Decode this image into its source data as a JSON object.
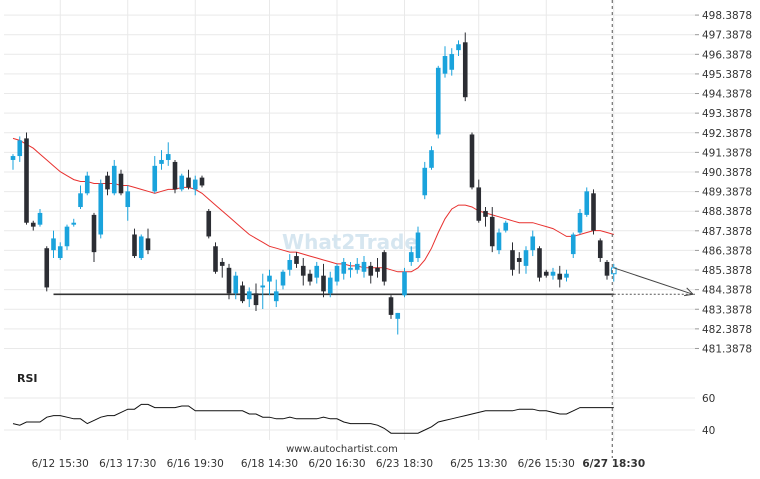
{
  "chart_data": {
    "type": "candlestick",
    "watermark": "What2Trade",
    "footer": "www.autochartist.com",
    "price_axis": {
      "min": 480.8,
      "max": 498.8,
      "ticks": [
        481.3878,
        482.3878,
        483.3878,
        484.3878,
        485.3878,
        486.3878,
        487.3878,
        488.3878,
        489.3878,
        490.3878,
        491.3878,
        492.3878,
        493.3878,
        494.3878,
        495.3878,
        496.3878,
        497.3878,
        498.3878
      ],
      "tick_labels": [
        "481.3878",
        "482.3878",
        "483.3878",
        "484.3878",
        "485.3878",
        "486.3878",
        "487.3878",
        "488.3878",
        "489.3878",
        "490.3878",
        "491.3878",
        "492.3878",
        "493.3878",
        "494.3878",
        "495.3878",
        "496.3878",
        "497.3878",
        "498.3878"
      ]
    },
    "x_labels": [
      {
        "label": "6/12 15:30",
        "index": 7
      },
      {
        "label": "6/13 17:30",
        "index": 17
      },
      {
        "label": "6/16 19:30",
        "index": 27
      },
      {
        "label": "6/18 14:30",
        "index": 38
      },
      {
        "label": "6/20 16:30",
        "index": 48
      },
      {
        "label": "6/23 18:30",
        "index": 58
      },
      {
        "label": "6/25 13:30",
        "index": 69
      },
      {
        "label": "6/26 15:30",
        "index": 79
      },
      {
        "label": "6/27 18:30",
        "index": 89,
        "bold": true
      }
    ],
    "candles": [
      [
        491.0,
        491.3,
        490.5,
        491.2
      ],
      [
        491.2,
        492.2,
        490.9,
        492.0
      ],
      [
        492.1,
        492.4,
        487.7,
        487.8
      ],
      [
        487.8,
        487.9,
        487.4,
        487.6
      ],
      [
        487.7,
        488.5,
        487.6,
        488.3
      ],
      [
        486.5,
        486.6,
        484.3,
        484.5
      ],
      [
        486.4,
        487.4,
        486.0,
        487.0
      ],
      [
        486.0,
        486.8,
        485.9,
        486.6
      ],
      [
        486.6,
        487.7,
        486.4,
        487.6
      ],
      [
        487.7,
        488.0,
        487.6,
        487.8
      ],
      [
        488.6,
        489.7,
        488.5,
        489.3
      ],
      [
        489.3,
        490.4,
        489.2,
        490.2
      ],
      [
        488.2,
        488.3,
        485.8,
        486.3
      ],
      [
        487.2,
        490.0,
        487.0,
        489.8
      ],
      [
        490.2,
        490.4,
        489.2,
        489.5
      ],
      [
        489.3,
        491.0,
        489.2,
        490.7
      ],
      [
        490.3,
        490.5,
        489.2,
        489.3
      ],
      [
        488.6,
        489.7,
        487.9,
        489.4
      ],
      [
        487.2,
        487.5,
        486.0,
        486.1
      ],
      [
        486.0,
        487.2,
        485.9,
        487.1
      ],
      [
        487.0,
        487.5,
        486.2,
        486.4
      ],
      [
        489.4,
        491.2,
        489.3,
        490.7
      ],
      [
        490.8,
        491.5,
        490.5,
        491.0
      ],
      [
        491.0,
        491.9,
        490.7,
        491.3
      ],
      [
        490.9,
        491.0,
        489.3,
        489.5
      ],
      [
        489.5,
        490.3,
        489.4,
        490.2
      ],
      [
        490.1,
        490.5,
        489.5,
        489.6
      ],
      [
        489.5,
        490.2,
        489.2,
        490.0
      ],
      [
        490.1,
        490.2,
        489.6,
        489.7
      ],
      [
        488.4,
        488.5,
        487.0,
        487.1
      ],
      [
        486.6,
        486.8,
        485.2,
        485.3
      ],
      [
        485.8,
        486.0,
        485.0,
        485.6
      ],
      [
        485.5,
        485.7,
        483.9,
        484.2
      ],
      [
        484.2,
        485.3,
        483.9,
        485.1
      ],
      [
        484.6,
        484.8,
        483.7,
        483.8
      ],
      [
        483.9,
        484.5,
        483.5,
        484.3
      ],
      [
        484.2,
        484.7,
        483.3,
        483.6
      ],
      [
        484.5,
        485.2,
        483.4,
        484.6
      ],
      [
        484.8,
        485.4,
        484.1,
        485.1
      ],
      [
        483.8,
        484.9,
        483.5,
        484.3
      ],
      [
        484.6,
        485.4,
        484.4,
        485.3
      ],
      [
        485.4,
        486.2,
        485.1,
        485.9
      ],
      [
        486.1,
        486.3,
        485.5,
        485.7
      ],
      [
        485.6,
        486.0,
        484.6,
        485.1
      ],
      [
        485.2,
        485.4,
        484.6,
        484.8
      ],
      [
        485.0,
        485.8,
        484.7,
        485.6
      ],
      [
        485.1,
        485.7,
        484.0,
        484.3
      ],
      [
        484.2,
        485.3,
        484.0,
        485.0
      ],
      [
        484.8,
        485.7,
        484.6,
        485.6
      ],
      [
        485.2,
        486.0,
        484.9,
        485.8
      ],
      [
        485.4,
        485.8,
        485.0,
        485.5
      ],
      [
        485.4,
        486.0,
        485.2,
        485.7
      ],
      [
        485.3,
        486.1,
        485.0,
        485.8
      ],
      [
        485.6,
        485.8,
        484.7,
        485.1
      ],
      [
        485.5,
        486.0,
        485.0,
        485.3
      ],
      [
        486.3,
        486.4,
        484.6,
        484.8
      ],
      [
        484.0,
        484.1,
        482.9,
        483.1
      ],
      [
        482.9,
        483.2,
        482.1,
        483.2
      ],
      [
        484.1,
        485.5,
        484.0,
        485.3
      ],
      [
        485.8,
        486.6,
        485.6,
        486.3
      ],
      [
        486.0,
        487.6,
        485.8,
        487.3
      ],
      [
        489.2,
        490.9,
        489.0,
        490.6
      ],
      [
        490.6,
        491.7,
        490.5,
        491.5
      ],
      [
        492.3,
        495.8,
        492.1,
        495.7
      ],
      [
        495.4,
        496.8,
        495.2,
        496.3
      ],
      [
        495.6,
        496.7,
        495.3,
        496.4
      ],
      [
        496.6,
        497.1,
        496.3,
        496.9
      ],
      [
        497.0,
        497.5,
        494.0,
        494.2
      ],
      [
        492.3,
        492.4,
        489.5,
        489.6
      ],
      [
        489.6,
        490.0,
        487.8,
        487.9
      ],
      [
        488.4,
        488.6,
        487.6,
        488.1
      ],
      [
        488.1,
        488.6,
        486.3,
        486.6
      ],
      [
        486.4,
        487.5,
        486.2,
        487.3
      ],
      [
        487.4,
        487.9,
        487.3,
        487.8
      ],
      [
        486.4,
        486.8,
        485.1,
        485.4
      ],
      [
        486.0,
        486.3,
        485.2,
        485.8
      ],
      [
        485.6,
        486.6,
        485.2,
        486.4
      ],
      [
        486.4,
        487.4,
        486.1,
        487.1
      ],
      [
        486.5,
        486.6,
        484.8,
        485.0
      ],
      [
        485.3,
        485.4,
        485.0,
        485.1
      ],
      [
        485.1,
        485.5,
        484.9,
        485.3
      ],
      [
        485.2,
        485.6,
        484.5,
        484.9
      ],
      [
        485.0,
        485.4,
        484.8,
        485.2
      ],
      [
        486.2,
        487.3,
        486.0,
        487.2
      ],
      [
        487.3,
        488.5,
        487.2,
        488.3
      ],
      [
        488.2,
        489.6,
        488.1,
        489.4
      ],
      [
        489.3,
        489.5,
        487.2,
        487.4
      ],
      [
        486.9,
        487.0,
        485.8,
        486.0
      ],
      [
        485.8,
        485.9,
        484.9,
        485.1
      ],
      [
        485.2,
        485.7,
        484.8,
        485.5
      ]
    ],
    "moving_average": [
      492.1,
      492.0,
      491.8,
      491.6,
      491.3,
      491.0,
      490.7,
      490.4,
      490.2,
      490.0,
      489.9,
      489.9,
      489.8,
      489.8,
      489.8,
      489.8,
      489.7,
      489.7,
      489.6,
      489.5,
      489.4,
      489.3,
      489.4,
      489.5,
      489.5,
      489.6,
      489.6,
      489.5,
      489.3,
      489.0,
      488.7,
      488.4,
      488.1,
      487.8,
      487.5,
      487.2,
      487.0,
      486.8,
      486.6,
      486.5,
      486.4,
      486.3,
      486.3,
      486.2,
      486.1,
      486.0,
      485.9,
      485.8,
      485.7,
      485.7,
      485.6,
      485.6,
      485.5,
      485.5,
      485.5,
      485.5,
      485.4,
      485.3,
      485.3,
      485.3,
      485.5,
      485.9,
      486.5,
      487.3,
      488.0,
      488.5,
      488.7,
      488.7,
      488.6,
      488.4,
      488.3,
      488.2,
      488.1,
      488.0,
      487.9,
      487.8,
      487.8,
      487.8,
      487.7,
      487.6,
      487.5,
      487.3,
      487.1,
      487.1,
      487.2,
      487.3,
      487.4,
      487.4,
      487.3,
      487.2
    ],
    "support_level": 484.15,
    "forecast": {
      "from_index": 89,
      "from_price": 485.5,
      "to_price": 484.15
    },
    "rsi": {
      "label": "RSI",
      "ticks": [
        40,
        60
      ],
      "tick_labels": [
        "40",
        "60"
      ],
      "min": 34,
      "max": 68,
      "values": [
        44,
        43,
        45,
        45,
        45,
        48,
        49,
        49,
        48,
        47,
        47,
        44,
        46,
        48,
        49,
        49,
        51,
        53,
        53,
        56,
        56,
        54,
        54,
        54,
        54,
        55,
        55,
        52,
        52,
        52,
        52,
        52,
        52,
        52,
        52,
        50,
        50,
        48,
        48,
        47,
        47,
        48,
        47,
        47,
        47,
        47,
        48,
        47,
        47,
        45,
        44,
        44,
        44,
        44,
        43,
        41,
        38,
        38,
        38,
        38,
        38,
        40,
        42,
        45,
        46,
        47,
        48,
        49,
        50,
        51,
        52,
        52,
        52,
        52,
        52,
        53,
        53,
        53,
        52,
        52,
        51,
        50,
        50,
        52,
        54,
        54,
        54,
        54,
        54,
        54
      ]
    }
  },
  "colors": {
    "bull": "#1aa3dc",
    "bear": "#2b2d33",
    "ma_line": "#e8312f",
    "support": "#333333",
    "grid": "#e9e9e9",
    "axis_text": "#333333",
    "watermark": "#d6e6f0"
  }
}
